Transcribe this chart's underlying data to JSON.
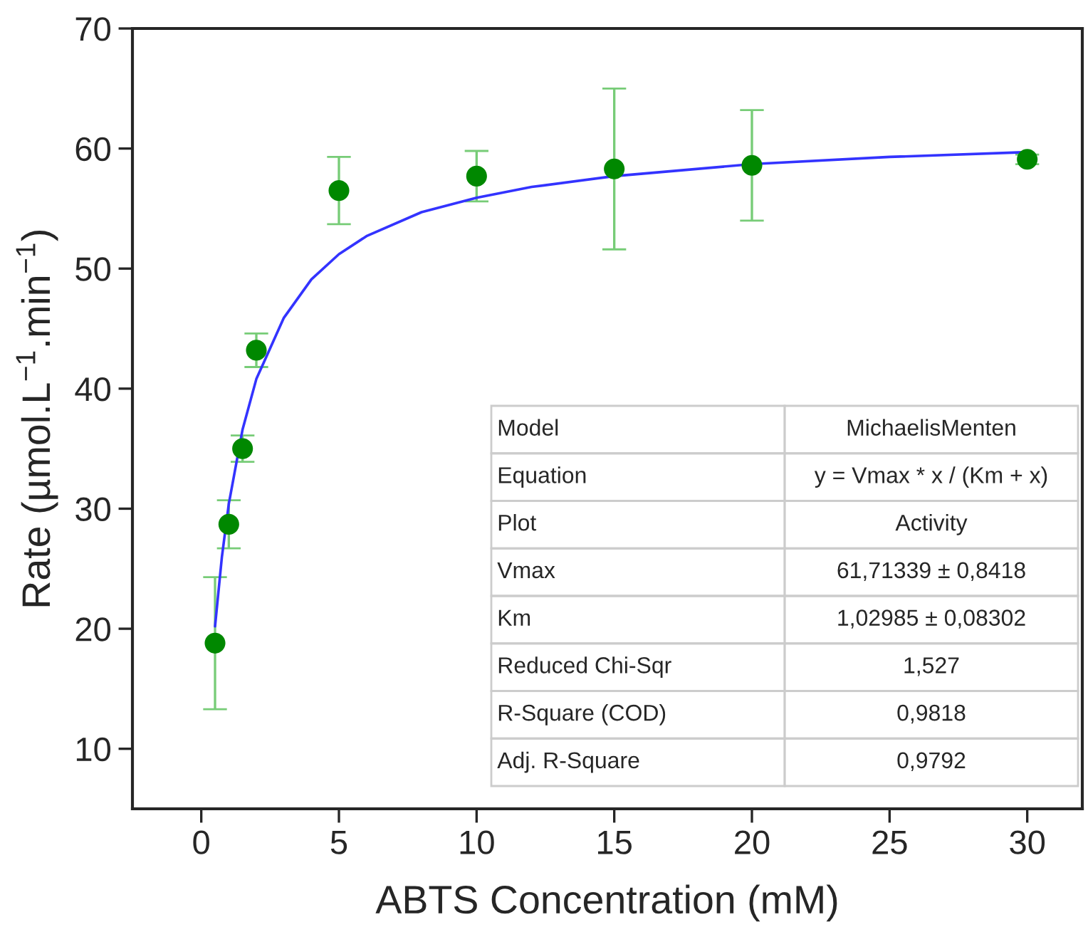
{
  "chart_data": {
    "type": "scatter",
    "xlabel": "ABTS Concentration (mM)",
    "ylabel": "Rate (µmol.L$^{−1}$.min$^{−1}$)",
    "xlim": [
      -2.5,
      32
    ],
    "xticks": [
      0,
      5,
      10,
      15,
      20,
      25,
      30
    ],
    "ylim": [
      5,
      70
    ],
    "yticks": [
      10,
      20,
      30,
      40,
      50,
      60,
      70
    ],
    "grid": false,
    "legend": false,
    "series": [
      {
        "color": "#008800",
        "marker": "circle",
        "x": [
          0.5,
          1,
          1.5,
          2,
          5,
          10,
          15,
          20,
          30
        ],
        "values": [
          18.8,
          28.7,
          35.0,
          43.2,
          56.5,
          57.7,
          58.3,
          58.6,
          59.1
        ],
        "errors": [
          5.5,
          2.0,
          1.1,
          1.4,
          2.8,
          2.1,
          6.7,
          4.6,
          0.4
        ]
      },
      {
        "type": "line",
        "color": "#3333ff",
        "line_style": "solid",
        "x": [
          0.5,
          0.75,
          1,
          1.5,
          2,
          3,
          4,
          5,
          6,
          8,
          10,
          12,
          15,
          20,
          25,
          30
        ],
        "values": [
          20.2,
          26.0,
          30.4,
          36.6,
          40.8,
          45.9,
          49.1,
          51.2,
          52.7,
          54.7,
          55.9,
          56.8,
          57.7,
          58.7,
          59.3,
          59.7
        ]
      }
    ],
    "annotations": [
      "Model",
      "MichaelisMenten",
      "Equation",
      "y = Vmax * x / (Km + x)",
      "Plot",
      "Activity",
      "Vmax",
      "61,71339 ± 0,8418",
      "Km",
      "1,02985 ± 0,08302",
      "Reduced Chi-Sqr",
      "1,527",
      "R-Square (COD)",
      "0,9818",
      "Adj. R-Square",
      "0,9792"
    ]
  }
}
